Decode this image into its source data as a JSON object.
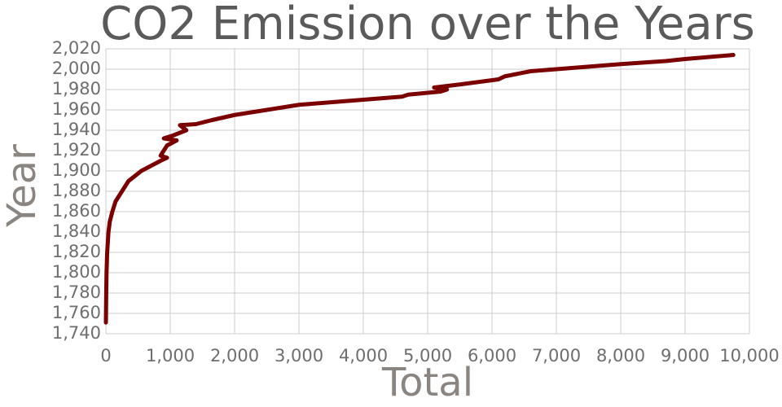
{
  "chart_data": {
    "type": "line",
    "title": "CO2 Emission over the Years",
    "x_label": "Total",
    "y_label": "Year",
    "x": [
      0,
      5,
      10,
      20,
      40,
      60,
      100,
      150,
      250,
      350,
      550,
      700,
      850,
      950,
      850,
      900,
      950,
      1100,
      900,
      1050,
      1250,
      1150,
      1400,
      1650,
      2000,
      2500,
      3000,
      4000,
      4600,
      4700,
      5200,
      5300,
      5100,
      5500,
      6100,
      6200,
      6600,
      7000,
      8000,
      8700,
      9000,
      9750
    ],
    "values": [
      1751,
      1780,
      1800,
      1820,
      1840,
      1850,
      1860,
      1870,
      1880,
      1890,
      1900,
      1905,
      1910,
      1913,
      1915,
      1920,
      1925,
      1930,
      1932,
      1935,
      1940,
      1945,
      1946,
      1950,
      1955,
      1960,
      1965,
      1970,
      1973,
      1975,
      1978,
      1980,
      1982,
      1985,
      1990,
      1993,
      1998,
      2000,
      2005,
      2008,
      2010,
      2014
    ],
    "color": "#7b0000",
    "xlim": [
      0,
      10000
    ],
    "xticks": [
      0,
      {
        "value": 1000,
        "label": "1,000"
      },
      {
        "value": 2000,
        "label": "2,000"
      },
      {
        "value": 3000,
        "label": "3,000"
      },
      {
        "value": 4000,
        "label": "4,000"
      },
      {
        "value": 5000,
        "label": "5,000"
      },
      {
        "value": 6000,
        "label": "6,000"
      },
      {
        "value": 7000,
        "label": "7,000"
      },
      {
        "value": 8000,
        "label": "8,000"
      },
      {
        "value": 9000,
        "label": "9,000"
      },
      {
        "value": 10000,
        "label": "10,000"
      }
    ],
    "ylim": [
      1740,
      2020
    ],
    "yticks": [
      {
        "value": 1740,
        "label": "1,740"
      },
      {
        "value": 1760,
        "label": "1,760"
      },
      {
        "value": 1780,
        "label": "1,780"
      },
      {
        "value": 1800,
        "label": "1,800"
      },
      {
        "value": 1820,
        "label": "1,820"
      },
      {
        "value": 1840,
        "label": "1,840"
      },
      {
        "value": 1860,
        "label": "1,860"
      },
      {
        "value": 1880,
        "label": "1,880"
      },
      {
        "value": 1900,
        "label": "1,900"
      },
      {
        "value": 1920,
        "label": "1,920"
      },
      {
        "value": 1940,
        "label": "1,940"
      },
      {
        "value": 1960,
        "label": "1,960"
      },
      {
        "value": 1980,
        "label": "1,980"
      },
      {
        "value": 2000,
        "label": "2,000"
      },
      {
        "value": 2020,
        "label": "2,020"
      }
    ],
    "grid": true
  }
}
